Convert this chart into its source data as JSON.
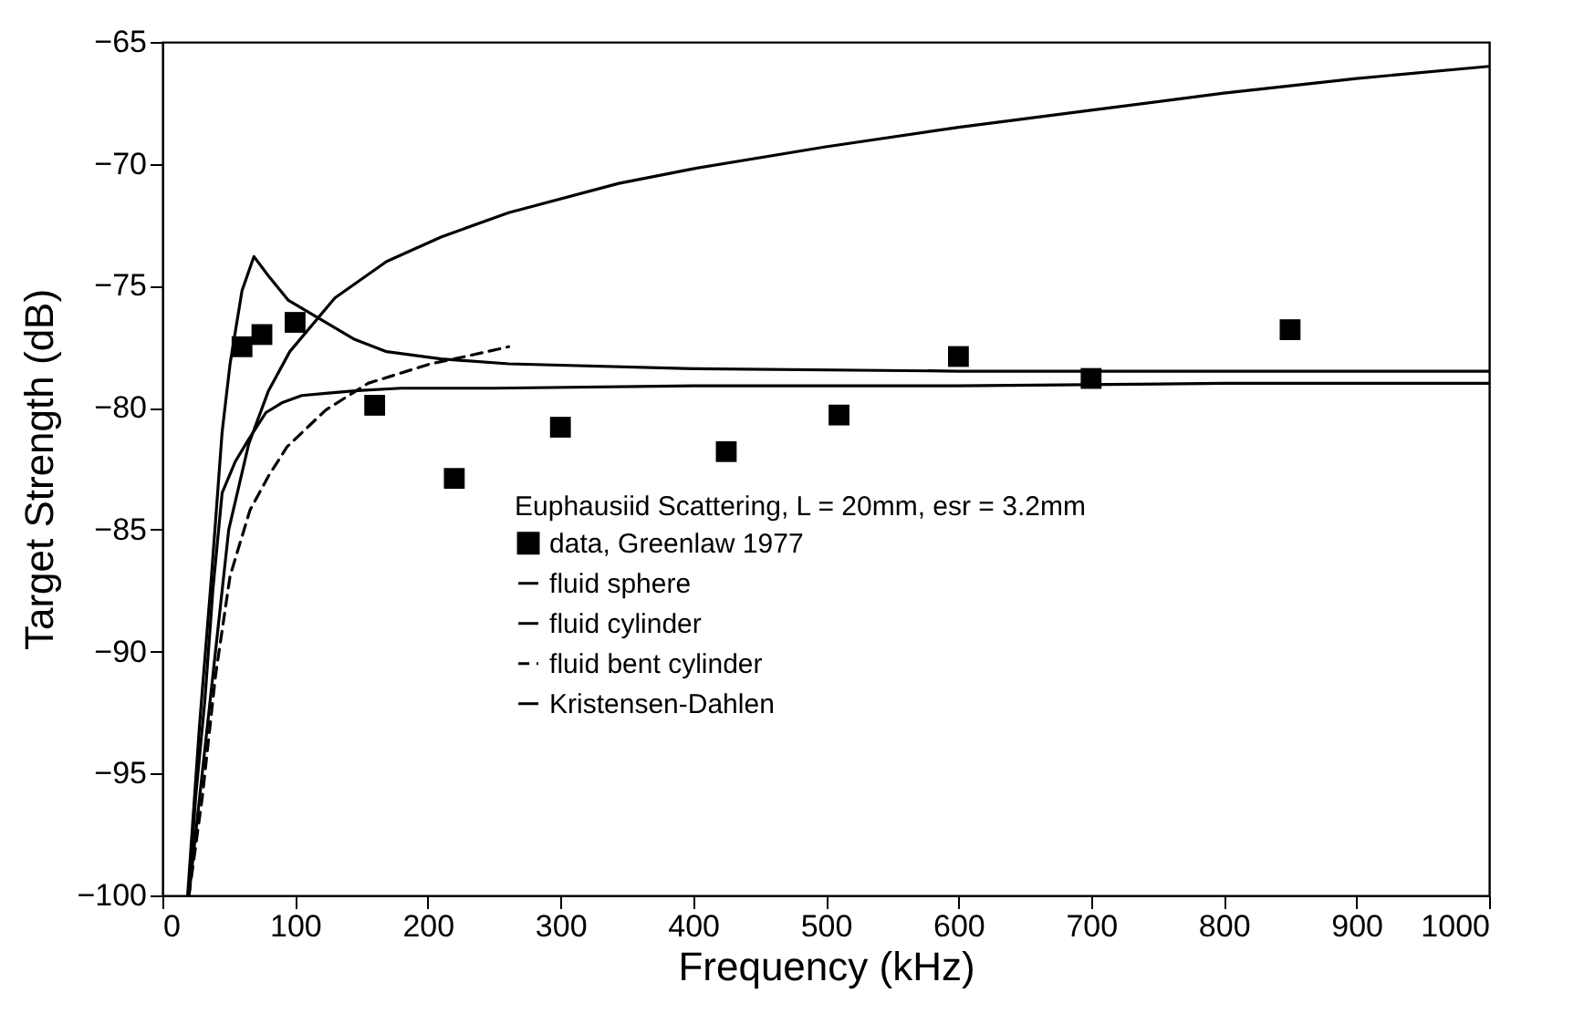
{
  "chart_data": {
    "type": "line",
    "xlabel": "Frequency (kHz)",
    "ylabel": "Target Strength (dB)",
    "legend_title": "Euphausiid Scattering, L = 20mm, esr = 3.2mm",
    "legend": "bottom",
    "grid": false,
    "xlim": [
      0,
      1000
    ],
    "xticks": [
      0,
      100,
      200,
      300,
      400,
      500,
      600,
      700,
      800,
      900,
      1000
    ],
    "ylim": [
      -100,
      -65
    ],
    "yticks": [
      -100,
      -95,
      -90,
      -85,
      -80,
      -75,
      -70,
      -65
    ],
    "series": [
      {
        "name": "data, Greenlaw 1977",
        "type": "scatter",
        "marker": "square",
        "color": "#000000",
        "x": [
          60,
          75,
          100,
          160,
          220,
          300,
          425,
          510,
          600,
          700,
          850
        ],
        "values": [
          -77.5,
          -77,
          -76.5,
          -79.9,
          -82.9,
          -80.8,
          -81.8,
          -80.3,
          -77.9,
          -78.8,
          -76.8
        ]
      },
      {
        "name": "fluid sphere",
        "color": "#000000",
        "line_style": "solid",
        "x": [
          20,
          25,
          32,
          38,
          45,
          55,
          65,
          78,
          90,
          105,
          125,
          147,
          180,
          250,
          400,
          600,
          800,
          1000
        ],
        "values": [
          -100,
          -96,
          -92,
          -87.5,
          -83.5,
          -82.2,
          -81.3,
          -80.2,
          -79.8,
          -79.5,
          -79.4,
          -79.3,
          -79.2,
          -79.2,
          -79.1,
          -79.1,
          -79,
          -79
        ]
      },
      {
        "name": "fluid cylinder",
        "color": "#000000",
        "line_style": "solid",
        "x": [
          20,
          30,
          40,
          50,
          65,
          80,
          96,
          130,
          169,
          210,
          261,
          344,
          400,
          500,
          600,
          700,
          800,
          900,
          1000
        ],
        "values": [
          -100,
          -95,
          -90,
          -85,
          -81.5,
          -79.3,
          -77.7,
          -75.5,
          -74,
          -73,
          -72,
          -70.8,
          -70.2,
          -69.3,
          -68.5,
          -67.8,
          -67.1,
          -66.5,
          -66
        ]
      },
      {
        "name": "fluid bent cylinder",
        "color": "#000000",
        "line_style": "dashed",
        "x": [
          20,
          30,
          40,
          51,
          66,
          80,
          94,
          123,
          155,
          202,
          220,
          261
        ],
        "values": [
          -100,
          -96,
          -91,
          -86.9,
          -84.2,
          -82.8,
          -81.6,
          -80.1,
          -79,
          -78.2,
          -78,
          -77.5
        ]
      },
      {
        "name": "Kristensen-Dahlen",
        "color": "#000000",
        "line_style": "solid",
        "x": [
          19,
          28,
          37,
          45,
          51,
          60,
          69,
          80,
          95,
          120,
          145,
          169,
          210,
          261,
          400,
          600,
          800,
          1000
        ],
        "values": [
          -100,
          -93,
          -86.9,
          -81,
          -78.2,
          -75.2,
          -73.8,
          -74.6,
          -75.6,
          -76.4,
          -77.2,
          -77.7,
          -78,
          -78.2,
          -78.4,
          -78.5,
          -78.5,
          -78.5
        ]
      }
    ]
  }
}
